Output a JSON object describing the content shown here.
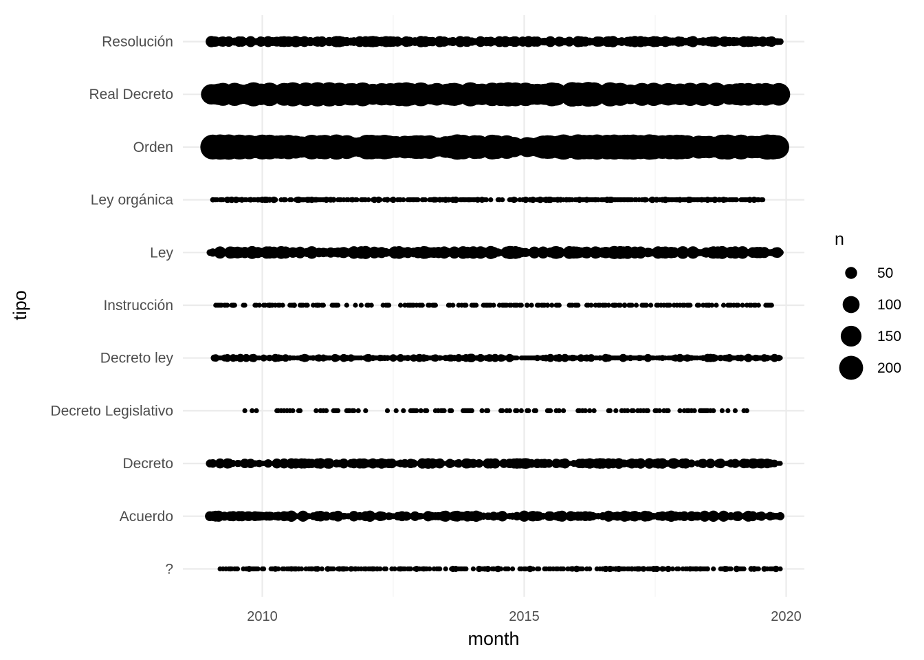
{
  "chart_data": {
    "type": "scatter",
    "title": "",
    "xlabel": "month",
    "ylabel": "tipo",
    "xlim": [
      2008.85,
      2021.0
    ],
    "x_ticks": [
      "2010",
      "2015",
      "2020"
    ],
    "x_tick_values": [
      2010,
      2015,
      2020
    ],
    "categories": [
      "Resolución",
      "Real Decreto",
      "Orden",
      "Ley orgánica",
      "Ley",
      "Instrucción",
      "Decreto ley",
      "Decreto Legislativo",
      "Decreto",
      "Acuerdo",
      "?"
    ],
    "grid": true,
    "point_color": "#000000",
    "legend": {
      "title": "n",
      "position": "right",
      "entries": [
        {
          "label": "50",
          "value": 50
        },
        {
          "label": "100",
          "value": 100
        },
        {
          "label": "150",
          "value": 150
        },
        {
          "label": "200",
          "value": 200
        }
      ]
    },
    "series": [
      {
        "category": "Resolución",
        "x_start": "2009-01",
        "x_end": "2019-11",
        "step_months": 1,
        "n_min": 15,
        "n_max": 45,
        "density": 1.0
      },
      {
        "category": "Real Decreto",
        "x_start": "2009-01",
        "x_end": "2019-11",
        "step_months": 1,
        "n_min": 60,
        "n_max": 215,
        "density": 1.0
      },
      {
        "category": "Orden",
        "x_start": "2009-01",
        "x_end": "2019-11",
        "step_months": 1,
        "n_min": 90,
        "n_max": 225,
        "density": 1.0
      },
      {
        "category": "Ley orgánica",
        "x_start": "2009-01",
        "x_end": "2019-07",
        "step_months": 1,
        "n_min": 1,
        "n_max": 15,
        "density": 0.8
      },
      {
        "category": "Ley",
        "x_start": "2009-01",
        "x_end": "2019-11",
        "step_months": 1,
        "n_min": 15,
        "n_max": 60,
        "density": 1.0
      },
      {
        "category": "Instrucción",
        "x_start": "2009-02",
        "x_end": "2019-09",
        "step_months": 1,
        "n_min": 1,
        "n_max": 10,
        "density": 0.45
      },
      {
        "category": "Decreto ley",
        "x_start": "2009-02",
        "x_end": "2019-11",
        "step_months": 1,
        "n_min": 1,
        "n_max": 25,
        "density": 0.92
      },
      {
        "category": "Decreto Legislativo",
        "x_start": "2009-09",
        "x_end": "2019-04",
        "step_months": 1,
        "n_min": 1,
        "n_max": 8,
        "density": 0.3
      },
      {
        "category": "Decreto",
        "x_start": "2009-01",
        "x_end": "2019-11",
        "step_months": 1,
        "n_min": 5,
        "n_max": 40,
        "density": 0.95
      },
      {
        "category": "Acuerdo",
        "x_start": "2009-01",
        "x_end": "2019-11",
        "step_months": 1,
        "n_min": 10,
        "n_max": 45,
        "density": 1.0
      },
      {
        "category": "?",
        "x_start": "2009-03",
        "x_end": "2019-11",
        "step_months": 1,
        "n_min": 1,
        "n_max": 15,
        "density": 0.62
      }
    ]
  }
}
